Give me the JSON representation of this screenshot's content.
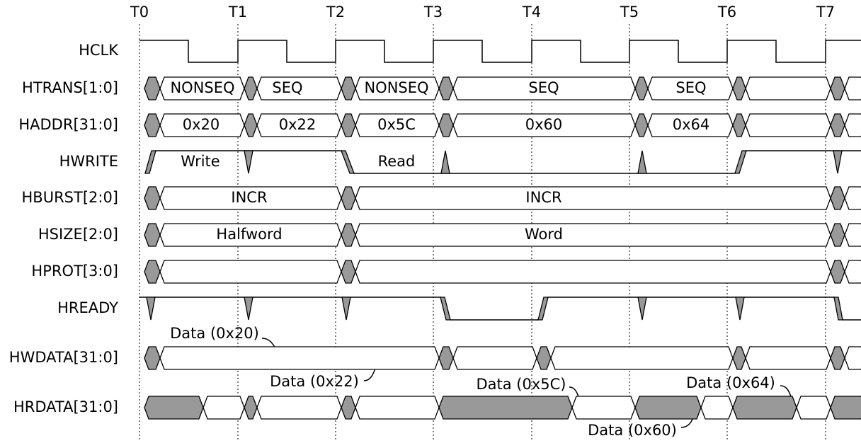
{
  "time_labels": [
    "T0",
    "T1",
    "T2",
    "T3",
    "T4",
    "T5",
    "T6",
    "T7"
  ],
  "signals": [
    {
      "name": "HCLK"
    },
    {
      "name": "HTRANS[1:0]",
      "labels": [
        "NONSEQ",
        "SEQ",
        "NONSEQ",
        "SEQ",
        "SEQ"
      ]
    },
    {
      "name": "HADDR[31:0]",
      "labels": [
        "0x20",
        "0x22",
        "0x5C",
        "0x60",
        "0x64"
      ]
    },
    {
      "name": "HWRITE",
      "labels": [
        "Write",
        "Read"
      ]
    },
    {
      "name": "HBURST[2:0]",
      "labels": [
        "INCR",
        "INCR"
      ]
    },
    {
      "name": "HSIZE[2:0]",
      "labels": [
        "Halfword",
        "Word"
      ]
    },
    {
      "name": "HPROT[3:0]"
    },
    {
      "name": "HREADY"
    },
    {
      "name": "HWDATA[31:0]"
    },
    {
      "name": "HRDATA[31:0]"
    }
  ],
  "annotations": [
    "Data (0x20)",
    "Data (0x22)",
    "Data (0x5C)",
    "Data (0x64)",
    "Data (0x60)"
  ]
}
